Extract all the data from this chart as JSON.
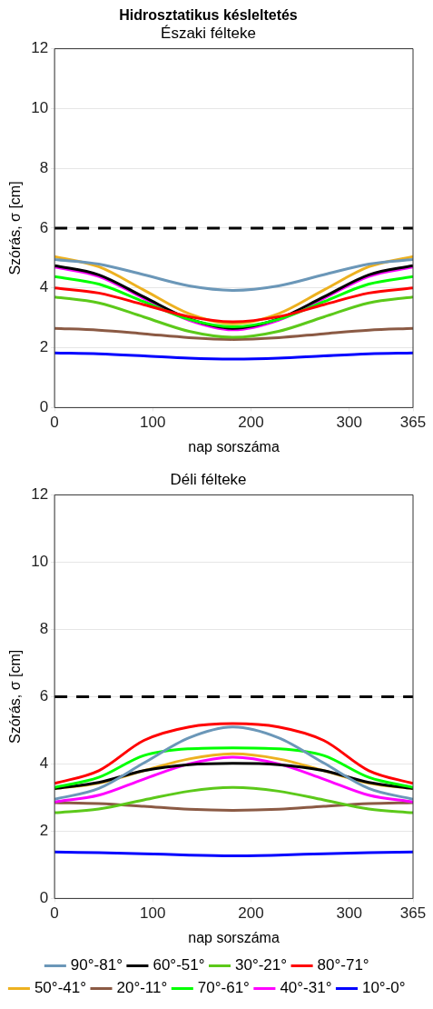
{
  "chart_data": [
    {
      "type": "line",
      "title": "Hidrosztatikus késleltetés",
      "subtitle": "Északi félteke",
      "xlabel": "nap sorszáma",
      "ylabel": "Szórás, σ [cm]",
      "x": [
        0,
        45,
        91,
        137,
        182,
        228,
        274,
        320,
        365
      ],
      "xlim": [
        0,
        365
      ],
      "xticks": [
        0,
        100,
        200,
        300,
        365
      ],
      "ylim": [
        0,
        12
      ],
      "yticks": [
        0,
        2,
        4,
        6,
        8,
        10,
        12
      ],
      "grid": "y",
      "legend": false,
      "marker": "none",
      "line_style": "solid",
      "ref_lines": [
        {
          "axis": "y",
          "value": 6,
          "color": "#000000",
          "line_style": "dashed"
        }
      ],
      "series": [
        {
          "color": "#6b97b8",
          "values": [
            4.95,
            4.8,
            4.44,
            4.07,
            3.92,
            4.07,
            4.44,
            4.8,
            4.95
          ]
        },
        {
          "color": "#ff0000",
          "values": [
            4.0,
            3.83,
            3.44,
            3.04,
            2.87,
            3.04,
            3.44,
            3.83,
            4.0
          ]
        },
        {
          "color": "#00ff00",
          "values": [
            4.38,
            4.13,
            3.54,
            2.95,
            2.7,
            2.95,
            3.54,
            4.13,
            4.38
          ]
        },
        {
          "color": "#000000",
          "values": [
            4.75,
            4.44,
            3.7,
            2.97,
            2.65,
            2.97,
            3.7,
            4.44,
            4.75
          ]
        },
        {
          "color": "#edb120",
          "values": [
            5.05,
            4.71,
            3.93,
            3.14,
            2.8,
            3.14,
            3.93,
            4.71,
            5.05
          ]
        },
        {
          "color": "#ff00ff",
          "values": [
            4.7,
            4.39,
            3.65,
            2.92,
            2.6,
            2.92,
            3.65,
            4.39,
            4.7
          ]
        },
        {
          "color": "#5cc91a",
          "values": [
            3.7,
            3.5,
            3.03,
            2.55,
            2.35,
            2.55,
            3.03,
            3.5,
            3.7
          ]
        },
        {
          "color": "#8b5a44",
          "values": [
            2.65,
            2.59,
            2.47,
            2.34,
            2.28,
            2.34,
            2.47,
            2.59,
            2.65
          ]
        },
        {
          "color": "#0000ff",
          "values": [
            1.83,
            1.8,
            1.73,
            1.65,
            1.62,
            1.65,
            1.73,
            1.8,
            1.83
          ]
        }
      ]
    },
    {
      "type": "line",
      "title": "Déli félteke",
      "xlabel": "nap sorszáma",
      "ylabel": "Szórás, σ [cm]",
      "x": [
        0,
        45,
        91,
        137,
        182,
        228,
        274,
        320,
        365
      ],
      "xlim": [
        0,
        365
      ],
      "xticks": [
        0,
        100,
        200,
        300,
        365
      ],
      "ylim": [
        0,
        12
      ],
      "yticks": [
        0,
        2,
        4,
        6,
        8,
        10,
        12
      ],
      "grid": "y",
      "legend": "bottom",
      "marker": "none",
      "line_style": "solid",
      "ref_lines": [
        {
          "axis": "y",
          "value": 6,
          "color": "#000000",
          "line_style": "dashed"
        }
      ],
      "series": [
        {
          "name": "90°-81°",
          "color": "#6b97b8",
          "values": [
            2.95,
            3.27,
            4.03,
            4.78,
            5.1,
            4.78,
            4.03,
            3.27,
            2.95
          ]
        },
        {
          "name": "80°-71°",
          "color": "#ff0000",
          "values": [
            3.42,
            3.8,
            4.7,
            5.1,
            5.2,
            5.1,
            4.7,
            3.8,
            3.42
          ]
        },
        {
          "name": "70°-61°",
          "color": "#00ff00",
          "values": [
            3.3,
            3.6,
            4.25,
            4.45,
            4.48,
            4.45,
            4.25,
            3.6,
            3.3
          ]
        },
        {
          "name": "60°-51°",
          "color": "#000000",
          "values": [
            3.27,
            3.45,
            3.8,
            3.98,
            4.02,
            3.98,
            3.8,
            3.45,
            3.27
          ]
        },
        {
          "name": "50°-41°",
          "color": "#edb120",
          "values": [
            3.27,
            3.43,
            3.8,
            4.15,
            4.3,
            4.15,
            3.8,
            3.43,
            3.27
          ]
        },
        {
          "name": "40°-31°",
          "color": "#ff00ff",
          "values": [
            2.87,
            3.07,
            3.55,
            4.0,
            4.2,
            4.0,
            3.55,
            3.07,
            2.87
          ]
        },
        {
          "name": "30°-21°",
          "color": "#5cc91a",
          "values": [
            2.55,
            2.66,
            2.93,
            3.19,
            3.3,
            3.19,
            2.93,
            2.66,
            2.55
          ]
        },
        {
          "name": "20°-11°",
          "color": "#8b5a44",
          "values": [
            2.85,
            2.82,
            2.74,
            2.65,
            2.62,
            2.65,
            2.74,
            2.82,
            2.85
          ]
        },
        {
          "name": "10°-0°",
          "color": "#0000ff",
          "values": [
            1.38,
            1.36,
            1.33,
            1.29,
            1.27,
            1.29,
            1.33,
            1.36,
            1.38
          ]
        }
      ]
    }
  ]
}
